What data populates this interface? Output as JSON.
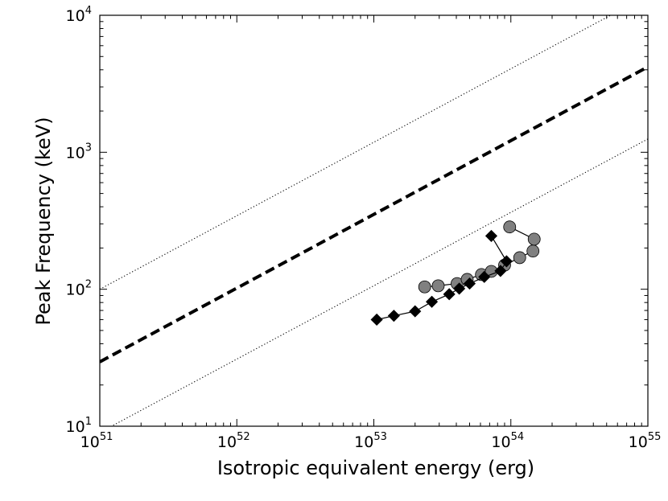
{
  "chart_data": {
    "type": "scatter",
    "title": "",
    "xlabel": "Isotropic equivalent energy (erg)",
    "ylabel": "Peak Frequency (keV)",
    "xscale": "log",
    "yscale": "log",
    "xlim": [
      1e+51,
      1e+55
    ],
    "ylim": [
      10,
      10000
    ],
    "x_ticks": [
      {
        "base": "10",
        "exp": "51",
        "value": 1e+51
      },
      {
        "base": "10",
        "exp": "52",
        "value": 1e+52
      },
      {
        "base": "10",
        "exp": "53",
        "value": 1e+53
      },
      {
        "base": "10",
        "exp": "54",
        "value": 1e+54
      },
      {
        "base": "10",
        "exp": "55",
        "value": 1e+55
      }
    ],
    "y_ticks": [
      {
        "base": "10",
        "exp": "1",
        "value": 10
      },
      {
        "base": "10",
        "exp": "2",
        "value": 100
      },
      {
        "base": "10",
        "exp": "3",
        "value": 1000
      },
      {
        "base": "10",
        "exp": "4",
        "value": 10000
      }
    ],
    "reference_lines": [
      {
        "name": "amati-relation",
        "style": "dashed",
        "color": "#000000",
        "points": [
          [
            1e+51,
            29.5
          ],
          [
            1e+55,
            4200
          ]
        ]
      },
      {
        "name": "upper-scatter",
        "style": "dotted",
        "color": "#000000",
        "points": [
          [
            1e+51,
            100
          ],
          [
            1e+55,
            14000
          ]
        ]
      },
      {
        "name": "lower-scatter",
        "style": "dotted",
        "color": "#000000",
        "points": [
          [
            1e+51,
            9
          ],
          [
            1e+55,
            1250
          ]
        ]
      }
    ],
    "series": [
      {
        "name": "circles",
        "marker": "circle",
        "color": "#808080",
        "x": [
          2.35e+53,
          2.95e+53,
          4.05e+53,
          4.8e+53,
          6.1e+53,
          7.2e+53,
          9e+53,
          1.16e+54,
          1.45e+54,
          1.48e+54,
          9.8e+53
        ],
        "y": [
          104,
          106,
          110,
          118,
          128,
          135,
          150,
          170,
          190,
          232,
          285
        ]
      },
      {
        "name": "diamonds",
        "marker": "diamond",
        "color": "#000000",
        "x": [
          1.05e+53,
          1.4e+53,
          2e+53,
          2.65e+53,
          3.55e+53,
          4.2e+53,
          5e+53,
          6.4e+53,
          8.4e+53,
          9.3e+53,
          7.2e+53
        ],
        "y": [
          60,
          64,
          69,
          81,
          92,
          101,
          110,
          123,
          136,
          160,
          245
        ]
      }
    ]
  }
}
